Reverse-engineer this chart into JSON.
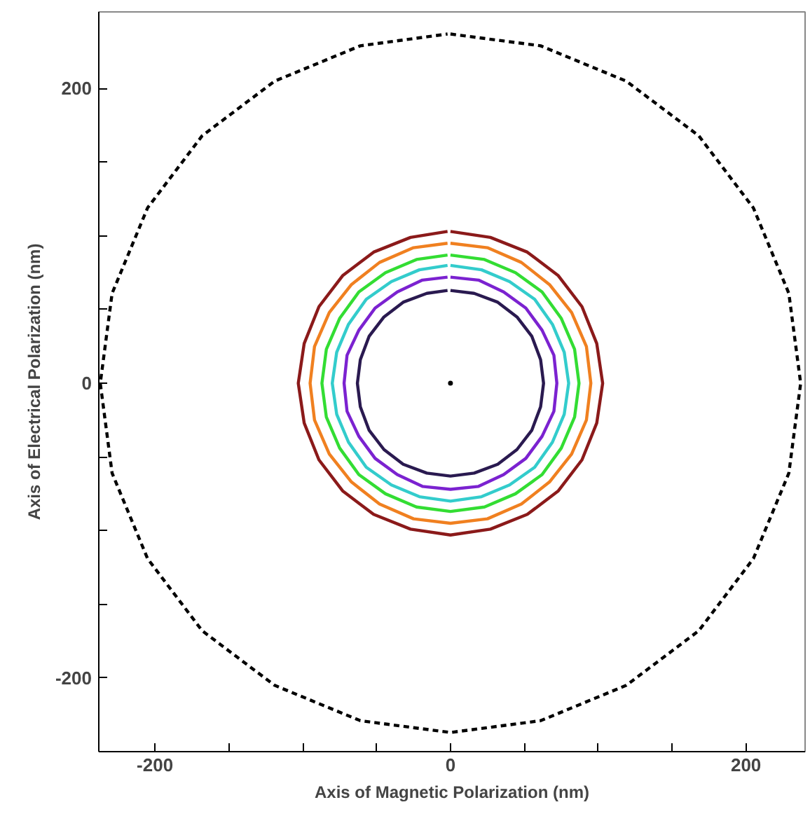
{
  "chart_data": {
    "type": "line",
    "xlabel": "Axis of Magnetic Polarization (nm)",
    "ylabel": "Axis of Electrical Polarization (nm)",
    "xlim": [
      -238,
      240
    ],
    "ylim": [
      -250,
      252
    ],
    "xticks": [
      -200,
      {
        "value": -150,
        "label": null
      },
      {
        "value": -100,
        "label": null
      },
      {
        "value": -50,
        "label": null
      },
      0,
      {
        "value": 50,
        "label": null
      },
      {
        "value": 100,
        "label": null
      },
      {
        "value": 150,
        "label": null
      },
      200
    ],
    "yticks": [
      {
        "value": -250,
        "label": null
      },
      -200,
      {
        "value": -150,
        "label": null
      },
      {
        "value": -100,
        "label": null
      },
      {
        "value": -50,
        "label": null
      },
      0,
      {
        "value": 50,
        "label": null
      },
      {
        "value": 100,
        "label": null
      },
      {
        "value": 150,
        "label": null
      },
      200
    ],
    "grid": false,
    "series": [
      {
        "color": "#000000",
        "line_style": "dashed",
        "x": [
          0,
          61,
          119,
          168,
          205,
          229,
          237,
          229,
          205,
          168,
          119,
          61,
          0,
          -61,
          -119,
          -168,
          -205,
          -229,
          -237,
          -229,
          -205,
          -168,
          -119,
          -61,
          -2
        ],
        "values": [
          237,
          229,
          205,
          168,
          119,
          61,
          0,
          -61,
          -119,
          -168,
          -205,
          -229,
          -237,
          -229,
          -205,
          -168,
          -119,
          -61,
          0,
          61,
          119,
          168,
          205,
          229,
          237
        ]
      },
      {
        "color": "#8b1a1a",
        "x": [
          0,
          27,
          52,
          73,
          89,
          99,
          103,
          99,
          89,
          73,
          52,
          27,
          0,
          -27,
          -52,
          -73,
          -89,
          -99,
          -103,
          -99,
          -89,
          -73,
          -52,
          -27,
          -2
        ],
        "values": [
          103,
          99,
          89,
          73,
          52,
          27,
          0,
          -27,
          -52,
          -73,
          -89,
          -99,
          -103,
          -99,
          -89,
          -73,
          -52,
          -27,
          0,
          27,
          52,
          73,
          89,
          99,
          103
        ]
      },
      {
        "color": "#f08020",
        "x": [
          0,
          25,
          48,
          67,
          82,
          92,
          95,
          92,
          82,
          67,
          48,
          25,
          0,
          -25,
          -48,
          -67,
          -82,
          -92,
          -95,
          -92,
          -82,
          -67,
          -48,
          -25,
          -2
        ],
        "values": [
          95,
          92,
          82,
          67,
          48,
          25,
          0,
          -25,
          -48,
          -67,
          -82,
          -92,
          -95,
          -92,
          -82,
          -67,
          -48,
          -25,
          0,
          25,
          48,
          67,
          82,
          92,
          95
        ]
      },
      {
        "color": "#33dd33",
        "x": [
          0,
          23,
          44,
          62,
          75,
          84,
          87,
          84,
          75,
          62,
          44,
          23,
          0,
          -23,
          -44,
          -62,
          -75,
          -84,
          -87,
          -84,
          -75,
          -62,
          -44,
          -23,
          -2
        ],
        "values": [
          87,
          84,
          75,
          62,
          44,
          23,
          0,
          -23,
          -44,
          -62,
          -75,
          -84,
          -87,
          -84,
          -75,
          -62,
          -44,
          -23,
          0,
          23,
          44,
          62,
          75,
          84,
          87
        ]
      },
      {
        "color": "#33cccc",
        "x": [
          0,
          21,
          40,
          57,
          69,
          77,
          80,
          77,
          69,
          57,
          40,
          21,
          0,
          -21,
          -40,
          -57,
          -69,
          -77,
          -80,
          -77,
          -69,
          -57,
          -40,
          -21,
          -2
        ],
        "values": [
          80,
          77,
          69,
          57,
          40,
          21,
          0,
          -21,
          -40,
          -57,
          -69,
          -77,
          -80,
          -77,
          -69,
          -57,
          -40,
          -21,
          0,
          21,
          40,
          57,
          69,
          77,
          80
        ]
      },
      {
        "color": "#7b22d0",
        "x": [
          0,
          19,
          36,
          51,
          62,
          70,
          72,
          70,
          62,
          51,
          36,
          19,
          0,
          -19,
          -36,
          -51,
          -62,
          -70,
          -72,
          -70,
          -62,
          -51,
          -36,
          -19,
          -2
        ],
        "values": [
          72,
          70,
          62,
          51,
          36,
          19,
          0,
          -19,
          -36,
          -51,
          -62,
          -70,
          -72,
          -70,
          -62,
          -51,
          -36,
          -19,
          0,
          19,
          36,
          51,
          62,
          70,
          72
        ]
      },
      {
        "color": "#2a1a50",
        "x": [
          0,
          16,
          32,
          45,
          55,
          61,
          63,
          61,
          55,
          45,
          32,
          16,
          0,
          -16,
          -32,
          -45,
          -55,
          -61,
          -63,
          -61,
          -55,
          -45,
          -32,
          -16,
          -2
        ],
        "values": [
          63,
          61,
          55,
          45,
          32,
          16,
          0,
          -16,
          -32,
          -45,
          -55,
          -61,
          -63,
          -61,
          -55,
          -45,
          -32,
          -16,
          0,
          16,
          32,
          45,
          55,
          61,
          63
        ]
      },
      {
        "type": "scatter",
        "marker": "circle",
        "color": "#000000",
        "x": [
          0
        ],
        "values": [
          0
        ]
      }
    ]
  }
}
